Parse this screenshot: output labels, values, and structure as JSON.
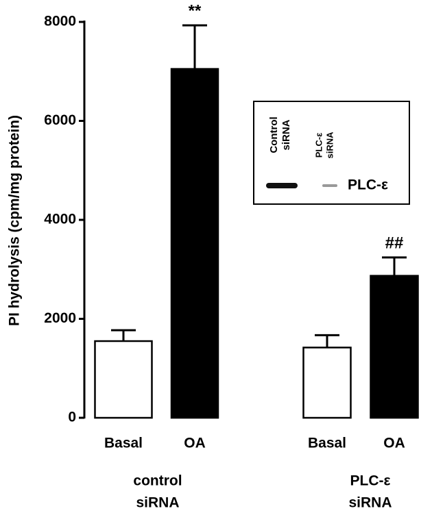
{
  "chart_data": {
    "type": "bar",
    "y_label": "PI hydrolysis (cpm/mg protein)",
    "categories": [
      "Basal",
      "OA",
      "Basal",
      "OA"
    ],
    "values": [
      1550,
      7050,
      1420,
      2870
    ],
    "errors": [
      220,
      880,
      250,
      370
    ],
    "colors": [
      "#ffffff",
      "#000000",
      "#ffffff",
      "#000000"
    ],
    "annotations": [
      null,
      "**",
      null,
      "##"
    ],
    "groups": [
      [
        "control",
        "siRNA"
      ],
      [
        "PLC-ε",
        "siRNA"
      ]
    ],
    "ylim": [
      0,
      8000
    ],
    "yticks": [
      0,
      2000,
      4000,
      6000,
      8000
    ],
    "inset": {
      "lanes": [
        [
          "Control",
          "siRNA"
        ],
        [
          "PLC-ε",
          "siRNA"
        ]
      ],
      "band_label": "PLC-ε"
    }
  }
}
